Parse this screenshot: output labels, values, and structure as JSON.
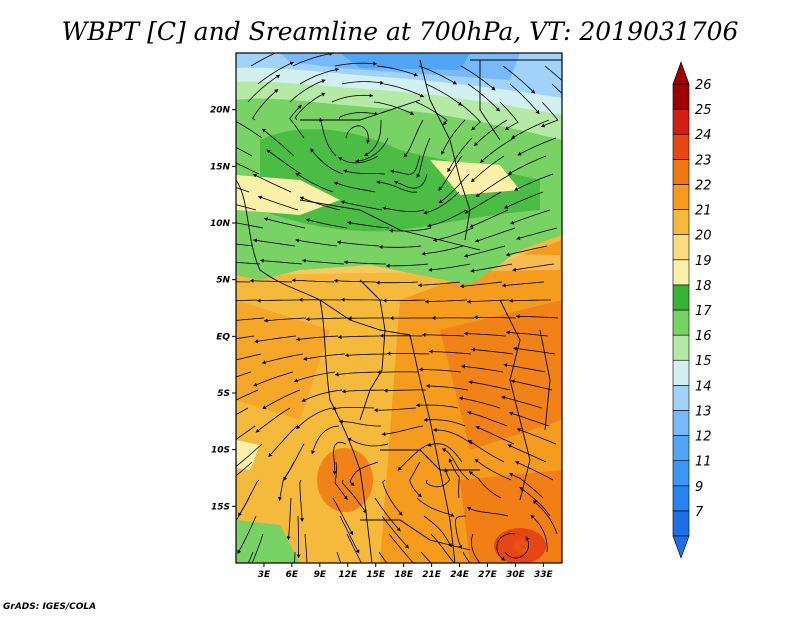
{
  "chart_data": {
    "type": "heatmap",
    "title": "WBPT [C] and Sreamline at 700hPa, VT: 2019031706",
    "x_tick_labels": [
      "3E",
      "6E",
      "9E",
      "12E",
      "15E",
      "18E",
      "21E",
      "24E",
      "27E",
      "30E",
      "33E"
    ],
    "x_ticks": [
      3,
      6,
      9,
      12,
      15,
      18,
      21,
      24,
      27,
      30,
      33
    ],
    "y_tick_labels": [
      "20N",
      "15N",
      "10N",
      "5N",
      "EQ",
      "5S",
      "10S",
      "15S"
    ],
    "y_ticks": [
      20,
      15,
      10,
      5,
      0,
      -5,
      -10,
      -15
    ],
    "xlim": [
      0,
      35
    ],
    "ylim": [
      -20,
      25
    ],
    "colorbar": {
      "labels": [
        "7",
        "9",
        "11",
        "12",
        "13",
        "14",
        "15",
        "16",
        "17",
        "18",
        "19",
        "20",
        "21",
        "22",
        "23",
        "24",
        "25",
        "26"
      ],
      "colors": [
        "#1e6ee6",
        "#2882f0",
        "#3c96f5",
        "#50a5f5",
        "#78b9f9",
        "#a0d2fa",
        "#d2f0f0",
        "#b4eaa6",
        "#78d264",
        "#37b437",
        "#faf0aa",
        "#fadc82",
        "#f5b93c",
        "#f59b1e",
        "#f07814",
        "#e64614",
        "#d21e14",
        "#a00000"
      ],
      "orientation": "vertical",
      "placement": "right"
    },
    "overlay": "streamlines",
    "grid": false
  },
  "credit": "GrADS: IGES/COLA"
}
